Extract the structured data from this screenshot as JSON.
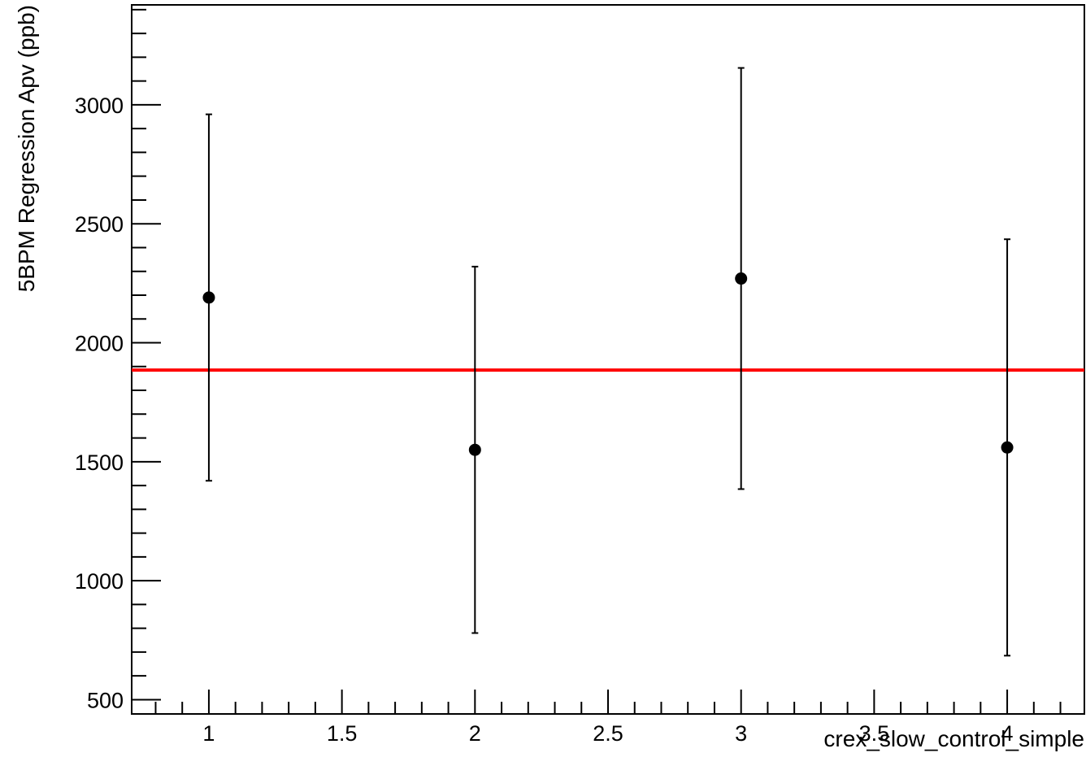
{
  "colors": {
    "background": "#ffffff",
    "axis": "#000000",
    "points": "#000000",
    "fit_line": "#ff0000"
  },
  "chart_data": {
    "type": "scatter",
    "title": "",
    "xlabel": "crex_slow_control_simple",
    "ylabel": "5BPM Regression Apv (ppb)",
    "xlim": [
      0.71,
      4.29
    ],
    "ylim": [
      440,
      3420
    ],
    "x_ticks": [
      1,
      1.5,
      2,
      2.5,
      3,
      3.5,
      4
    ],
    "x_tick_labels": [
      "1",
      "1.5",
      "2",
      "2.5",
      "3",
      "3.5",
      "4"
    ],
    "y_ticks": [
      500,
      1000,
      1500,
      2000,
      2500,
      3000
    ],
    "y_tick_labels": [
      "500",
      "1000",
      "1500",
      "2000",
      "2500",
      "3000"
    ],
    "grid": false,
    "legend": "none",
    "series": [
      {
        "x": [
          1,
          2,
          3,
          4
        ],
        "y": [
          2190,
          1550,
          2270,
          1560
        ],
        "yerr": [
          770,
          770,
          885,
          875
        ],
        "marker": "filled-circle"
      }
    ],
    "fit_line": {
      "y": 1885
    }
  }
}
